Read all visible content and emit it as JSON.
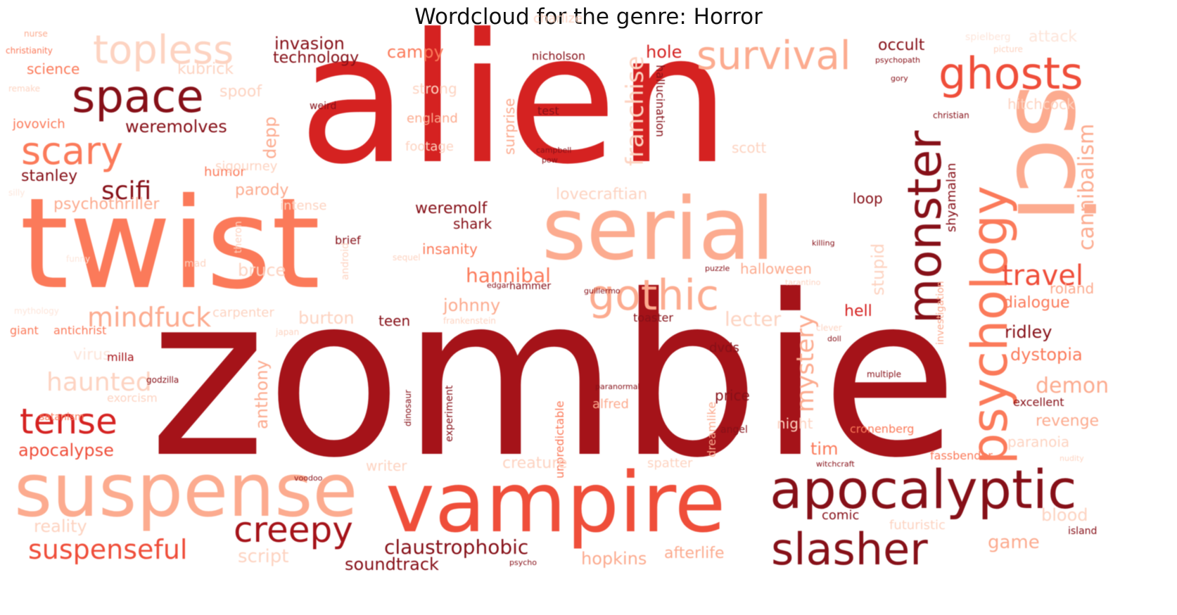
{
  "title": "Wordcloud for the genre: Horror",
  "palette": [
    "#a51319",
    "#d52221",
    "#ef4e3a",
    "#fb7a5a",
    "#fcab8f",
    "#fdd3c1",
    "#861018",
    "#fde5da"
  ],
  "words": {
    "zombie": "zombie",
    "alien": "alien",
    "twist": "twist",
    "serial": "serial",
    "suspense": "suspense",
    "vampire": "vampire",
    "sci": "sci",
    "apocalyptic": "apocalyptic",
    "space": "space",
    "topless": "topless",
    "scary": "scary",
    "survival": "survival",
    "ghosts": "ghosts",
    "monster": "monster",
    "psychology": "psychology",
    "gothic": "gothic",
    "creepy": "creepy",
    "slasher": "slasher",
    "tense": "tense",
    "suspenseful": "suspenseful",
    "mindfuck": "mindfuck",
    "haunted": "haunted",
    "travel": "travel",
    "cannibalism": "cannibalism",
    "claustrophobic": "claustrophobic",
    "soundtrack": "soundtrack",
    "scifi": "scifi",
    "franchise": "franchise",
    "mystery": "mystery",
    "hannibal": "hannibal",
    "weremolves": "weremolves",
    "apocalypse": "apocalypse",
    "stanley": "stanley",
    "jovovich": "jovovich",
    "science": "science",
    "kubrick": "kubrick",
    "invasion": "invasion",
    "technology": "technology",
    "campy": "campy",
    "occult": "occult",
    "hole": "hole",
    "weird": "weird",
    "england": "england",
    "test": "test",
    "surprise": "surprise",
    "nicholson": "nicholson",
    "hallucination": "hallucination",
    "humor": "humor",
    "sigourney": "sigourney",
    "parody": "parody",
    "psychothriller": "psychothriller",
    "depp": "depp",
    "scott": "scott",
    "lovecraftian": "lovecraftian",
    "weremolf": "weremolf",
    "shark": "shark",
    "insanity": "insanity",
    "brief": "brief",
    "halloween": "halloween",
    "loop": "loop",
    "bruce": "bruce",
    "shyamalan": "shyamalan",
    "ridley": "ridley",
    "dystopia": "dystopia",
    "dialogue": "dialogue",
    "demon": "demon",
    "revenge": "revenge",
    "paranoia": "paranoia",
    "hell": "hell",
    "lecter": "lecter",
    "teen": "teen",
    "johnny": "johnny",
    "burton": "burton",
    "carpenter": "carpenter",
    "investigation": "investigation",
    "stupid": "stupid",
    "anthony": "anthony",
    "unpredictable": "unpredictable",
    "experiment": "experiment",
    "creature": "creature",
    "writer": "writer",
    "hopkins": "hopkins",
    "afterlife": "afterlife",
    "script": "script",
    "reality": "reality",
    "game": "game",
    "blood": "blood",
    "island": "island",
    "comic": "comic",
    "futuristic": "futuristic",
    "tim": "tim",
    "cronenberg": "cronenberg",
    "excellent": "excellent",
    "price": "price",
    "alfred": "alfred",
    "dvds": "dvds",
    "dreamlike": "dreamlike",
    "virus": "virus",
    "milla": "milla",
    "satanism": "satanism",
    "exorcism": "exorcism",
    "giant": "giant",
    "antichrist": "antichrist",
    "hitchcock": "hitchcock",
    "attack": "attack",
    "spielberg": "spielberg",
    "charlize": "charlize",
    "toaster": "toaster",
    "hammer": "hammer",
    "psychopath": "psychopath",
    "footage": "footage",
    "campbell": "campbell",
    "strong": "strong",
    "spoof": "spoof",
    "roland": "roland",
    "intense": "intense",
    "spatter": "spatter",
    "theron": "theron",
    "android": "android",
    "christian": "christian",
    "fassbender": "fassbender",
    "guillermo": "guillermo",
    "puzzle": "puzzle",
    "killing": "killing",
    "edgar": "edgar",
    "frankenstein": "frankenstein",
    "angel": "angel",
    "witchcraft": "witchcraft",
    "night": "night",
    "multiple": "multiple",
    "godzilla": "godzilla",
    "paranormal": "paranormal",
    "dinosaur": "dinosaur",
    "psycho": "psycho",
    "mythology": "mythology",
    "funny": "funny",
    "silly": "silly",
    "christianity": "christianity",
    "nurse": "nurse",
    "mad": "mad",
    "japan": "japan",
    "clever": "clever",
    "doll": "doll",
    "sequel": "sequel",
    "remake": "remake",
    "voodoo": "voodoo",
    "pow": "pow",
    "tarantino": "tarantino",
    "nudity": "nudity",
    "gory": "gory",
    "picture": "picture"
  }
}
